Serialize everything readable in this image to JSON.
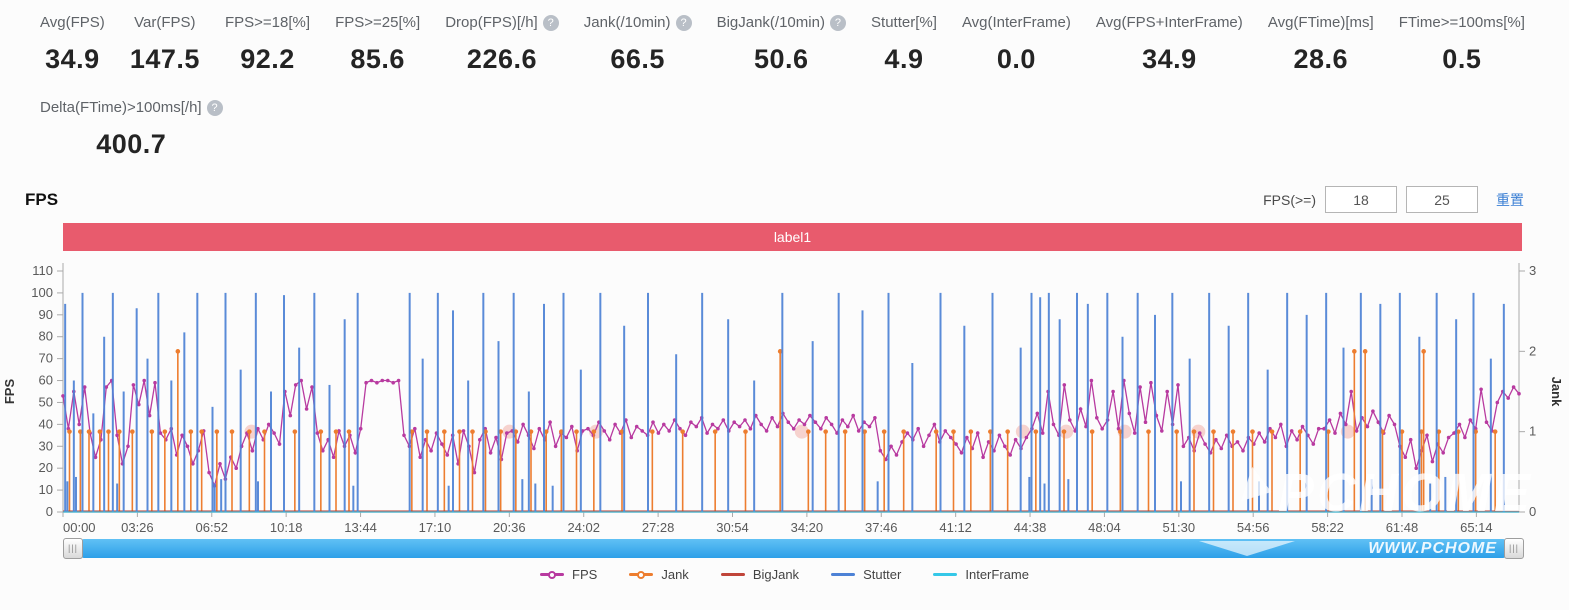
{
  "metrics_row1": [
    {
      "label": "Avg(FPS)",
      "value": "34.9",
      "help": false
    },
    {
      "label": "Var(FPS)",
      "value": "147.5",
      "help": false
    },
    {
      "label": "FPS>=18[%]",
      "value": "92.2",
      "help": false
    },
    {
      "label": "FPS>=25[%]",
      "value": "85.6",
      "help": false
    },
    {
      "label": "Drop(FPS)[/h]",
      "value": "226.6",
      "help": true
    },
    {
      "label": "Jank(/10min)",
      "value": "66.5",
      "help": true
    },
    {
      "label": "BigJank(/10min)",
      "value": "50.6",
      "help": true
    },
    {
      "label": "Stutter[%]",
      "value": "4.9",
      "help": false
    },
    {
      "label": "Avg(InterFrame)",
      "value": "0.0",
      "help": false
    },
    {
      "label": "Avg(FPS+InterFrame)",
      "value": "34.9",
      "help": false
    },
    {
      "label": "Avg(FTime)[ms]",
      "value": "28.6",
      "help": false
    },
    {
      "label": "FTime>=100ms[%]",
      "value": "0.5",
      "help": false
    }
  ],
  "metrics_row2": [
    {
      "label": "Delta(FTime)>100ms[/h]",
      "value": "400.7",
      "help": true
    }
  ],
  "section": {
    "title": "FPS"
  },
  "threshold_control": {
    "label": "FPS(>=)",
    "input1": "18",
    "input2": "25",
    "reset_label": "重置"
  },
  "banner": {
    "text": "label1",
    "color": "#e85b6d"
  },
  "help_glyph": "?",
  "grip_glyph": "|||",
  "watermark": {
    "big": "PCHOME",
    "small": "WWW.PCHOME"
  },
  "chart_data": {
    "type": "line",
    "ylabel_left": "FPS",
    "ylabel_right": "Jank",
    "ylim_left": [
      0,
      110
    ],
    "ylim_right": [
      0,
      3
    ],
    "yticks_left": [
      0,
      10,
      20,
      30,
      40,
      50,
      60,
      70,
      80,
      90,
      100,
      110
    ],
    "yticks_right": [
      0,
      1,
      2,
      3
    ],
    "xticks": [
      "00:00",
      "03:26",
      "06:52",
      "10:18",
      "13:44",
      "17:10",
      "20:36",
      "24:02",
      "27:28",
      "30:54",
      "34:20",
      "37:46",
      "41:12",
      "44:38",
      "48:04",
      "51:30",
      "54:56",
      "58:22",
      "61:48",
      "65:14"
    ],
    "xtick_interval_min": 3.4333,
    "x_max_min": 67.2,
    "grid": false,
    "legend_position": "bottom",
    "legend": [
      {
        "name": "FPS",
        "color": "#b83aa0",
        "marker": true
      },
      {
        "name": "Jank",
        "color": "#ed7d2f",
        "marker": true
      },
      {
        "name": "BigJank",
        "color": "#c0453a",
        "marker": false
      },
      {
        "name": "Stutter",
        "color": "#4d82d6",
        "marker": false
      },
      {
        "name": "InterFrame",
        "color": "#35c8e8",
        "marker": false
      }
    ],
    "series": {
      "fps": {
        "name": "FPS",
        "color": "#b83aa0",
        "axis": "left",
        "values": [
          53,
          38,
          55,
          40,
          57,
          36,
          25,
          33,
          57,
          60,
          35,
          22,
          30,
          58,
          49,
          60,
          44,
          59,
          36,
          33,
          38,
          26,
          35,
          30,
          22,
          28,
          37,
          18,
          12,
          22,
          15,
          25,
          20,
          30,
          36,
          28,
          38,
          33,
          40,
          36,
          31,
          55,
          44,
          58,
          60,
          47,
          57,
          36,
          28,
          33,
          25,
          37,
          30,
          35,
          27,
          38,
          59,
          60,
          59,
          60,
          60,
          59,
          60,
          35,
          30,
          38,
          25,
          33,
          28,
          36,
          31,
          26,
          35,
          22,
          37,
          30,
          18,
          33,
          38,
          27,
          34,
          24,
          36,
          37,
          32,
          40,
          35,
          29,
          38,
          33,
          41,
          30,
          36,
          34,
          39,
          28,
          37,
          38,
          35,
          41,
          37,
          33,
          40,
          36,
          42,
          34,
          39,
          37,
          35,
          41,
          36,
          40,
          37,
          42,
          38,
          35,
          41,
          39,
          43,
          36,
          40,
          38,
          42,
          37,
          41,
          39,
          42,
          38,
          44,
          40,
          37,
          43,
          39,
          45,
          41,
          38,
          42,
          40,
          44,
          41,
          38,
          43,
          40,
          36,
          42,
          39,
          44,
          37,
          41,
          39,
          43,
          28,
          24,
          30,
          26,
          32,
          36,
          33,
          38,
          30,
          35,
          40,
          32,
          37,
          34,
          31,
          27,
          34,
          29,
          36,
          25,
          32,
          28,
          35,
          30,
          26,
          33,
          29,
          34,
          38,
          45,
          36,
          55,
          40,
          35,
          58,
          42,
          37,
          47,
          39,
          60,
          43,
          38,
          42,
          55,
          38,
          60,
          45,
          36,
          57,
          41,
          59,
          44,
          37,
          55,
          40,
          58,
          30,
          34,
          28,
          36,
          31,
          27,
          33,
          29,
          35,
          30,
          32,
          28,
          34,
          31,
          36,
          32,
          38,
          34,
          40,
          30,
          37,
          33,
          39,
          35,
          31,
          38,
          38,
          42,
          36,
          45,
          40,
          55,
          37,
          43,
          39,
          46,
          41,
          36,
          44,
          40,
          30,
          25,
          33,
          20,
          28,
          35,
          23,
          31,
          27,
          34,
          36,
          40,
          34,
          42,
          38,
          56,
          41,
          37,
          50,
          55,
          52,
          57,
          54
        ]
      },
      "jank": {
        "name": "Jank",
        "color": "#ed7d2f",
        "axis": "right",
        "events": [
          [
            0.3,
            1
          ],
          [
            0.8,
            1
          ],
          [
            1.2,
            1
          ],
          [
            1.7,
            1
          ],
          [
            2.1,
            1
          ],
          [
            2.6,
            1
          ],
          [
            3.2,
            1
          ],
          [
            4.1,
            1
          ],
          [
            4.7,
            1
          ],
          [
            5.3,
            2
          ],
          [
            5.9,
            1
          ],
          [
            6.4,
            1
          ],
          [
            7.1,
            1
          ],
          [
            7.8,
            1
          ],
          [
            8.6,
            1
          ],
          [
            9.3,
            1
          ],
          [
            10.7,
            1
          ],
          [
            11.9,
            1
          ],
          [
            12.6,
            1
          ],
          [
            13.2,
            1
          ],
          [
            16.1,
            1
          ],
          [
            16.8,
            1
          ],
          [
            17.6,
            1
          ],
          [
            18.3,
            1
          ],
          [
            18.9,
            1
          ],
          [
            19.5,
            1
          ],
          [
            20.2,
            1
          ],
          [
            20.9,
            1
          ],
          [
            21.6,
            1
          ],
          [
            22.3,
            1
          ],
          [
            23.0,
            1
          ],
          [
            23.7,
            1
          ],
          [
            24.5,
            1
          ],
          [
            25.8,
            1
          ],
          [
            27.2,
            1
          ],
          [
            28.6,
            1
          ],
          [
            30.1,
            1
          ],
          [
            31.5,
            1
          ],
          [
            33.1,
            2
          ],
          [
            34.4,
            1
          ],
          [
            35.2,
            1
          ],
          [
            36.1,
            1
          ],
          [
            37.0,
            1
          ],
          [
            37.9,
            1
          ],
          [
            38.8,
            1
          ],
          [
            40.3,
            1
          ],
          [
            41.1,
            1
          ],
          [
            41.9,
            1
          ],
          [
            42.8,
            1
          ],
          [
            43.6,
            1
          ],
          [
            44.9,
            1
          ],
          [
            46.2,
            1
          ],
          [
            47.5,
            1
          ],
          [
            48.8,
            1
          ],
          [
            50.1,
            1
          ],
          [
            51.4,
            1
          ],
          [
            52.2,
            1
          ],
          [
            53.1,
            1
          ],
          [
            54.0,
            1
          ],
          [
            54.9,
            1
          ],
          [
            55.8,
            1
          ],
          [
            57.1,
            1
          ],
          [
            58.4,
            1
          ],
          [
            59.6,
            2
          ],
          [
            60.1,
            2
          ],
          [
            60.9,
            1
          ],
          [
            61.8,
            1
          ],
          [
            62.7,
            1
          ],
          [
            62.8,
            2
          ],
          [
            63.5,
            1
          ],
          [
            64.4,
            1
          ],
          [
            65.2,
            1
          ],
          [
            66.1,
            1
          ]
        ]
      },
      "bigjank": {
        "name": "BigJank",
        "color": "#c0453a",
        "axis": "right",
        "baseline": 0
      },
      "stutter": {
        "name": "Stutter",
        "color": "#4d82d6",
        "axis": "left",
        "events": [
          [
            0.1,
            95
          ],
          [
            0.5,
            60
          ],
          [
            0.9,
            100
          ],
          [
            1.4,
            45
          ],
          [
            1.9,
            80
          ],
          [
            2.3,
            100
          ],
          [
            2.8,
            55
          ],
          [
            3.4,
            93
          ],
          [
            3.9,
            70
          ],
          [
            4.4,
            100
          ],
          [
            5.0,
            60
          ],
          [
            5.6,
            82
          ],
          [
            6.2,
            100
          ],
          [
            6.9,
            48
          ],
          [
            7.5,
            100
          ],
          [
            8.2,
            65
          ],
          [
            8.9,
            100
          ],
          [
            9.6,
            55
          ],
          [
            10.2,
            99
          ],
          [
            10.9,
            75
          ],
          [
            11.6,
            100
          ],
          [
            12.3,
            58
          ],
          [
            13.0,
            88
          ],
          [
            13.6,
            100
          ],
          [
            16.0,
            100
          ],
          [
            16.6,
            70
          ],
          [
            17.3,
            100
          ],
          [
            18.0,
            92
          ],
          [
            18.7,
            60
          ],
          [
            19.4,
            100
          ],
          [
            20.1,
            78
          ],
          [
            20.8,
            100
          ],
          [
            21.5,
            55
          ],
          [
            22.2,
            95
          ],
          [
            23.1,
            100
          ],
          [
            23.9,
            65
          ],
          [
            24.8,
            100
          ],
          [
            25.9,
            85
          ],
          [
            27.0,
            100
          ],
          [
            28.3,
            72
          ],
          [
            29.5,
            100
          ],
          [
            30.7,
            88
          ],
          [
            31.9,
            60
          ],
          [
            33.2,
            100
          ],
          [
            34.6,
            78
          ],
          [
            35.8,
            100
          ],
          [
            36.9,
            92
          ],
          [
            38.1,
            100
          ],
          [
            39.2,
            68
          ],
          [
            40.5,
            100
          ],
          [
            41.6,
            85
          ],
          [
            42.9,
            100
          ],
          [
            44.2,
            75
          ],
          [
            44.7,
            100
          ],
          [
            45.1,
            98
          ],
          [
            45.5,
            100
          ],
          [
            46.0,
            88
          ],
          [
            46.8,
            100
          ],
          [
            47.3,
            95
          ],
          [
            48.2,
            100
          ],
          [
            48.9,
            80
          ],
          [
            49.6,
            100
          ],
          [
            50.4,
            90
          ],
          [
            51.2,
            100
          ],
          [
            52.0,
            70
          ],
          [
            52.9,
            100
          ],
          [
            53.8,
            85
          ],
          [
            54.7,
            100
          ],
          [
            55.6,
            65
          ],
          [
            56.5,
            100
          ],
          [
            57.4,
            90
          ],
          [
            58.3,
            100
          ],
          [
            59.1,
            75
          ],
          [
            59.9,
            100
          ],
          [
            60.8,
            95
          ],
          [
            61.7,
            100
          ],
          [
            62.6,
            80
          ],
          [
            63.4,
            100
          ],
          [
            64.3,
            88
          ],
          [
            65.1,
            100
          ],
          [
            65.9,
            70
          ],
          [
            66.5,
            95
          ],
          [
            0.2,
            14
          ],
          [
            0.6,
            16
          ],
          [
            2.5,
            13
          ],
          [
            7.0,
            13
          ],
          [
            7.3,
            15
          ],
          [
            9.0,
            14
          ],
          [
            13.4,
            12
          ],
          [
            17.8,
            12
          ],
          [
            21.2,
            15
          ],
          [
            21.8,
            13
          ],
          [
            22.6,
            12
          ],
          [
            37.6,
            14
          ],
          [
            44.6,
            16
          ],
          [
            45.3,
            13
          ],
          [
            46.4,
            15
          ],
          [
            51.6,
            14
          ],
          [
            55.2,
            14
          ],
          [
            60.4,
            15
          ],
          [
            63.1,
            13
          ],
          [
            63.8,
            16
          ]
        ]
      },
      "interframe": {
        "name": "InterFrame",
        "color": "#35c8e8",
        "axis": "left",
        "baseline": 0
      }
    },
    "halos": [
      8.7,
      20.6,
      24.6,
      34.1,
      44.3,
      46.3,
      49.0,
      52.4,
      59.3
    ]
  }
}
